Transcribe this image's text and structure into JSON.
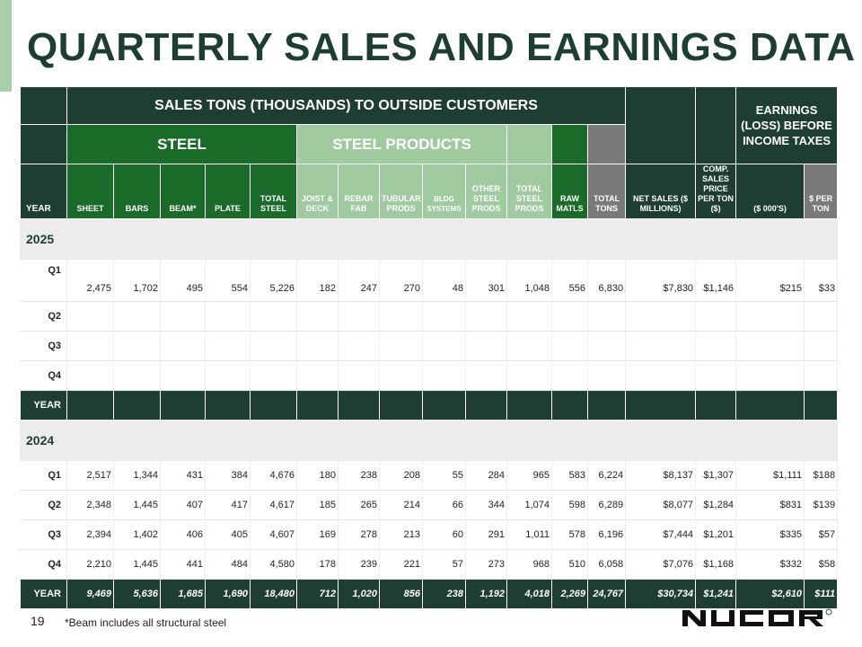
{
  "title": "QUARTERLY SALES AND EARNINGS DATA",
  "header": {
    "super": "SALES TONS (THOUSANDS) TO OUTSIDE CUSTOMERS",
    "steel": "STEEL",
    "steel_products": "STEEL PRODUCTS",
    "earnings": "EARNINGS (LOSS) BEFORE INCOME TAXES",
    "columns": [
      "YEAR",
      "SHEET",
      "BARS",
      "BEAM*",
      "PLATE",
      "TOTAL STEEL",
      "JOIST & DECK",
      "REBAR FAB",
      "TUBULAR PRODS",
      "BLDG SYSTEMS",
      "OTHER STEEL PRODS",
      "TOTAL STEEL PRODS",
      "RAW MATLS",
      "TOTAL TONS",
      "NET SALES ($ MILLIONS)",
      "COMP. SALES PRICE PER TON ($)",
      "($ 000'S)",
      "$ PER TON"
    ]
  },
  "sections": [
    {
      "year": "2025",
      "rows": [
        {
          "q": "Q1",
          "v": [
            "2,475",
            "1,702",
            "495",
            "554",
            "5,226",
            "182",
            "247",
            "270",
            "48",
            "301",
            "1,048",
            "556",
            "6,830",
            "$7,830",
            "$1,146",
            "$215",
            "$33"
          ]
        },
        {
          "q": "Q2",
          "v": [
            "",
            "",
            "",
            "",
            "",
            "",
            "",
            "",
            "",
            "",
            "",
            "",
            "",
            "",
            "",
            "",
            ""
          ]
        },
        {
          "q": "Q3",
          "v": [
            "",
            "",
            "",
            "",
            "",
            "",
            "",
            "",
            "",
            "",
            "",
            "",
            "",
            "",
            "",
            "",
            ""
          ]
        },
        {
          "q": "Q4",
          "v": [
            "",
            "",
            "",
            "",
            "",
            "",
            "",
            "",
            "",
            "",
            "",
            "",
            "",
            "",
            "",
            "",
            ""
          ]
        }
      ],
      "total": {
        "q": "YEAR",
        "v": [
          "",
          "",
          "",
          "",
          "",
          "",
          "",
          "",
          "",
          "",
          "",
          "",
          "",
          "",
          "",
          "",
          ""
        ]
      }
    },
    {
      "year": "2024",
      "rows": [
        {
          "q": "Q1",
          "v": [
            "2,517",
            "1,344",
            "431",
            "384",
            "4,676",
            "180",
            "238",
            "208",
            "55",
            "284",
            "965",
            "583",
            "6,224",
            "$8,137",
            "$1,307",
            "$1,111",
            "$188"
          ]
        },
        {
          "q": "Q2",
          "v": [
            "2,348",
            "1,445",
            "407",
            "417",
            "4,617",
            "185",
            "265",
            "214",
            "66",
            "344",
            "1,074",
            "598",
            "6,289",
            "$8,077",
            "$1,284",
            "$831",
            "$139"
          ]
        },
        {
          "q": "Q3",
          "v": [
            "2,394",
            "1,402",
            "406",
            "405",
            "4,607",
            "169",
            "278",
            "213",
            "60",
            "291",
            "1,011",
            "578",
            "6,196",
            "$7,444",
            "$1,201",
            "$335",
            "$57"
          ]
        },
        {
          "q": "Q4",
          "v": [
            "2,210",
            "1,445",
            "441",
            "484",
            "4,580",
            "178",
            "239",
            "221",
            "57",
            "273",
            "968",
            "510",
            "6,058",
            "$7,076",
            "$1,168",
            "$332",
            "$58"
          ]
        }
      ],
      "total": {
        "q": "YEAR",
        "v": [
          "9,469",
          "5,636",
          "1,685",
          "1,690",
          "18,480",
          "712",
          "1,020",
          "856",
          "238",
          "1,192",
          "4,018",
          "2,269",
          "24,767",
          "$30,734",
          "$1,241",
          "$2,610",
          "$111"
        ]
      }
    }
  ],
  "footer": {
    "page_number": "19",
    "footnote": "*Beam includes all structural steel",
    "logo": "NUCOR"
  }
}
